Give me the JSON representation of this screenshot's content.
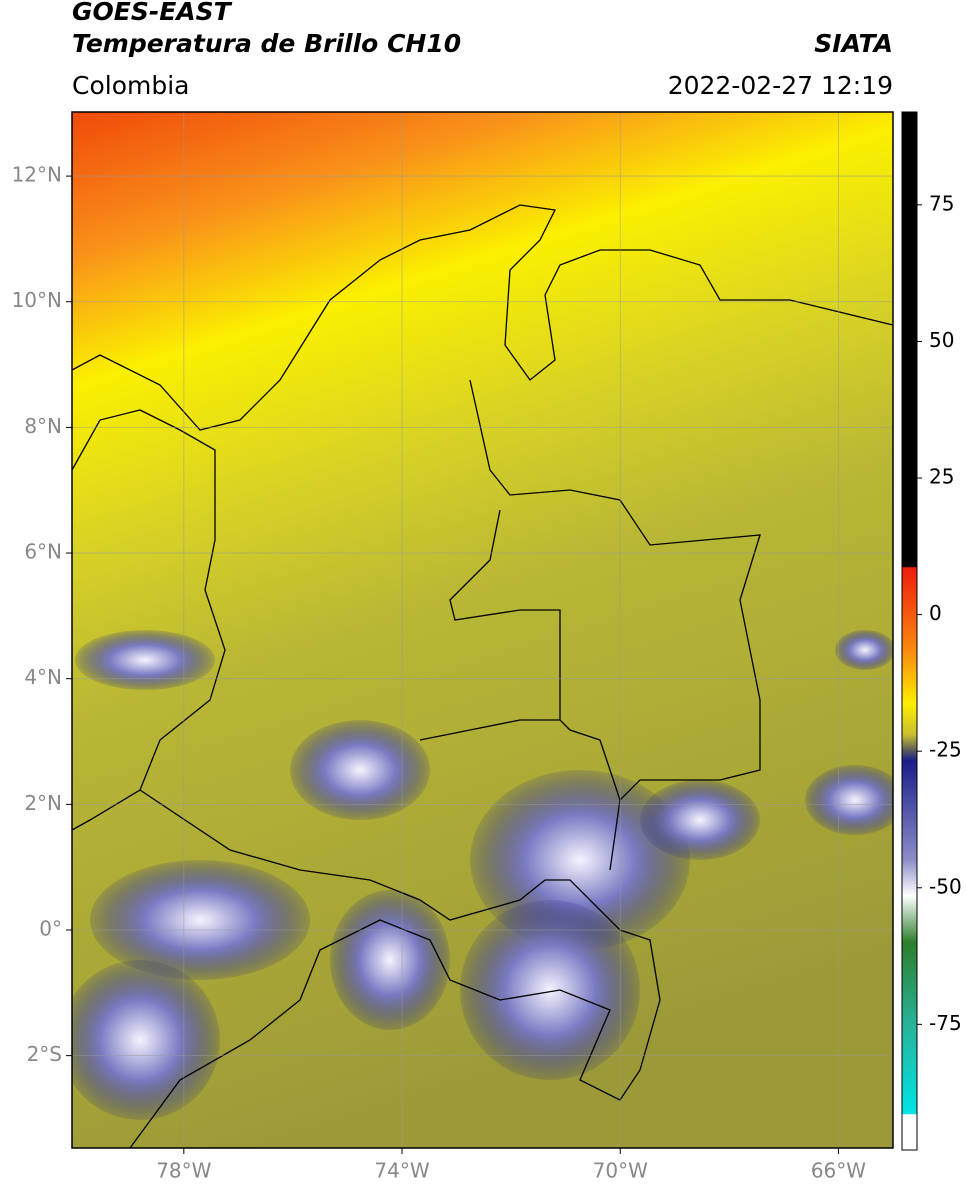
{
  "header": {
    "satellite": "GOES-EAST",
    "product": "Temperatura de Brillo CH10",
    "source": "SIATA",
    "region": "Colombia",
    "datetime": "2022-02-27 12:19"
  },
  "map": {
    "latlim": [
      -3.47,
      13.02
    ],
    "lonlim": [
      -80.05,
      -65.0
    ],
    "lat_ticks": [
      {
        "value": 12,
        "label": "12°N"
      },
      {
        "value": 10,
        "label": "10°N"
      },
      {
        "value": 8,
        "label": "8°N"
      },
      {
        "value": 6,
        "label": "6°N"
      },
      {
        "value": 4,
        "label": "4°N"
      },
      {
        "value": 2,
        "label": "2°N"
      },
      {
        "value": 0,
        "label": "0°"
      },
      {
        "value": -2,
        "label": "2°S"
      }
    ],
    "lon_ticks": [
      {
        "value": -78,
        "label": "78°W"
      },
      {
        "value": -74,
        "label": "74°W"
      },
      {
        "value": -70,
        "label": "70°W"
      },
      {
        "value": -66,
        "label": "66°W"
      }
    ]
  },
  "colorbar": {
    "vlim": [
      -98,
      92
    ],
    "ticks": [
      75,
      50,
      25,
      0,
      -25,
      -50,
      -75
    ]
  }
}
